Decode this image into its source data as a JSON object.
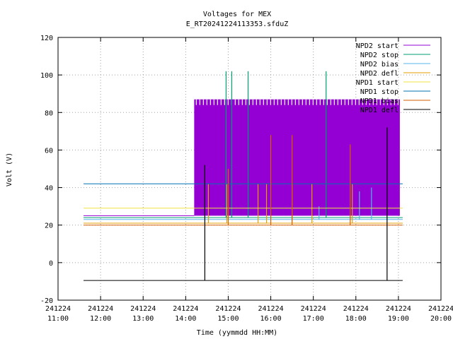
{
  "chart_data": {
    "type": "line",
    "title": "Voltages for MEX",
    "subtitle": "E_RT20241224113353.sfduZ",
    "xlabel": "Time (yymmdd HH:MM)",
    "ylabel": "Volt (V)",
    "ylim": [
      -20,
      120
    ],
    "xlim": [
      "241224 11:00",
      "241224 20:00"
    ],
    "grid": true,
    "legend_position": "top-right",
    "y_ticks": [
      -20,
      0,
      20,
      40,
      60,
      80,
      100,
      120
    ],
    "x_ticks": [
      {
        "date": "241224",
        "time": "11:00"
      },
      {
        "date": "241224",
        "time": "12:00"
      },
      {
        "date": "241224",
        "time": "13:00"
      },
      {
        "date": "241224",
        "time": "14:00"
      },
      {
        "date": "241224",
        "time": "15:00"
      },
      {
        "date": "241224",
        "time": "16:00"
      },
      {
        "date": "241224",
        "time": "17:00"
      },
      {
        "date": "241224",
        "time": "18:00"
      },
      {
        "date": "241224",
        "time": "19:00"
      },
      {
        "date": "241224",
        "time": "20:00"
      }
    ],
    "series": [
      {
        "name": "NPD2 start",
        "color": "#9400d3",
        "segments": [
          [
            "11:36",
            25
          ],
          [
            "14:12",
            25
          ]
        ],
        "band": {
          "from": "14:12",
          "to": "19:02",
          "low": 25,
          "high": 87
        }
      },
      {
        "name": "NPD2 stop",
        "color": "#009e73",
        "segments": [
          [
            "11:36",
            24
          ],
          [
            "19:06",
            24
          ]
        ],
        "spikes": [
          [
            "14:57",
            102
          ],
          [
            "15:05",
            102
          ],
          [
            "15:28",
            102
          ],
          [
            "17:18",
            102
          ]
        ]
      },
      {
        "name": "NPD2 bias",
        "color": "#56b4e9",
        "segments": [
          [
            "11:36",
            23
          ],
          [
            "19:06",
            23
          ]
        ],
        "spikes": [
          [
            "17:08",
            30
          ],
          [
            "18:05",
            38
          ],
          [
            "18:22",
            40
          ]
        ]
      },
      {
        "name": "NPD2 defl",
        "color": "#e69f00",
        "segments": [
          [
            "11:36",
            21
          ],
          [
            "19:06",
            21
          ]
        ],
        "spikes": [
          [
            "14:32",
            42
          ],
          [
            "14:58",
            42
          ],
          [
            "15:42",
            42
          ],
          [
            "15:54",
            42
          ],
          [
            "16:30",
            42
          ],
          [
            "16:58",
            42
          ],
          [
            "17:55",
            42
          ]
        ]
      },
      {
        "name": "NPD1 start",
        "color": "#f0e442",
        "segments": [
          [
            "11:36",
            29
          ],
          [
            "19:06",
            29
          ]
        ]
      },
      {
        "name": "NPD1 stop",
        "color": "#0072b2",
        "segments": [
          [
            "11:36",
            42
          ],
          [
            "19:06",
            42
          ]
        ]
      },
      {
        "name": "NPD1 bias",
        "color": "#d55e00",
        "segments": [
          [
            "11:36",
            20
          ],
          [
            "19:06",
            20
          ]
        ],
        "spikes": [
          [
            "15:00",
            50
          ],
          [
            "16:00",
            68
          ],
          [
            "16:30",
            68
          ],
          [
            "17:52",
            63
          ]
        ]
      },
      {
        "name": "NPD1 defl",
        "color": "#000000",
        "segments": [
          [
            "11:36",
            -9.5
          ],
          [
            "19:06",
            -9.5
          ]
        ],
        "spikes": [
          [
            "14:27",
            52
          ],
          [
            "18:44",
            72
          ]
        ]
      }
    ]
  }
}
